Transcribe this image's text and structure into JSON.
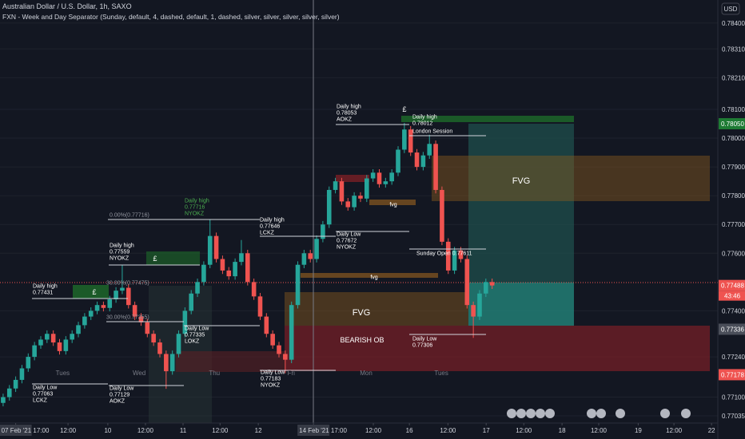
{
  "chart_data": {
    "type": "candlestick",
    "title": "Australian Dollar / U.S. Dollar, 1h, SAXO",
    "subtitle": "FXN - Week and Day Separator (Sunday, default, 4, dashed, default, 1, dashed, silver, silver, silver, silver, silver)",
    "currency": "USD",
    "up_color": "#26a69a",
    "down_color": "#ef5350",
    "xlim": [
      0,
      229
    ],
    "ylim": [
      0.7701,
      0.7848
    ],
    "xticks": [
      {
        "value": 5,
        "label": "07 Feb '21  17:00"
      },
      {
        "value": 21.7,
        "label": "12:00"
      },
      {
        "value": 34.4,
        "label": "10"
      },
      {
        "value": 46.4,
        "label": "12:00"
      },
      {
        "value": 58.4,
        "label": "11"
      },
      {
        "value": 70.2,
        "label": "12:00"
      },
      {
        "value": 82.4,
        "label": "12"
      },
      {
        "value": 100,
        "label": "14 Feb '21  17:00"
      },
      {
        "value": 119.1,
        "label": "12:00"
      },
      {
        "value": 130.6,
        "label": "16"
      },
      {
        "value": 142.9,
        "label": "12:00"
      },
      {
        "value": 155.1,
        "label": "17"
      },
      {
        "value": 167.1,
        "label": "12:00"
      },
      {
        "value": 179.3,
        "label": "18"
      },
      {
        "value": 191,
        "label": "12:00"
      },
      {
        "value": 203.6,
        "label": "19"
      },
      {
        "value": 215,
        "label": "12:00"
      },
      {
        "value": 227,
        "label": "22"
      }
    ],
    "yticks": [
      {
        "value": 0.784,
        "label": "0.78400"
      },
      {
        "value": 0.7831,
        "label": "0.78310"
      },
      {
        "value": 0.7821,
        "label": "0.78210"
      },
      {
        "value": 0.781,
        "label": "0.78100"
      },
      {
        "value": 0.78,
        "label": "0.78000"
      },
      {
        "value": 0.779,
        "label": "0.77900"
      },
      {
        "value": 0.778,
        "label": "0.77800"
      },
      {
        "value": 0.777,
        "label": "0.77700"
      },
      {
        "value": 0.776,
        "label": "0.77600"
      },
      {
        "value": 0.774,
        "label": "0.77400"
      },
      {
        "value": 0.7724,
        "label": "0.77240"
      },
      {
        "value": 0.771,
        "label": "0.77100"
      },
      {
        "value": 0.77035,
        "label": "0.77035"
      }
    ],
    "price_tags": [
      {
        "value": 0.7805,
        "label": "0.78050",
        "color": "#1e7b34"
      },
      {
        "value": 0.77488,
        "label": "0.77488",
        "color": "#ef5350"
      },
      {
        "value": 0.77336,
        "label": "0.77336",
        "color": "#4a4e59"
      },
      {
        "value": 0.77178,
        "label": "0.77178",
        "color": "#ef5350"
      }
    ],
    "countdown": "43:46",
    "day_labels": [
      {
        "value": 20,
        "label": "Tues"
      },
      {
        "value": 44.4,
        "label": "Wed"
      },
      {
        "value": 68.4,
        "label": "Thu"
      },
      {
        "value": 92.9,
        "label": "Fri"
      },
      {
        "value": 116.8,
        "label": "Mon"
      },
      {
        "value": 140.8,
        "label": "Tues"
      }
    ],
    "x": [
      1,
      3,
      5,
      7,
      9,
      11,
      13,
      15,
      17,
      19,
      21,
      23,
      25,
      27,
      29,
      31,
      33,
      35,
      37,
      39,
      41,
      43,
      45,
      47,
      49,
      51,
      53,
      55,
      57,
      59,
      61,
      63,
      65,
      67,
      69,
      71,
      73,
      75,
      77,
      79,
      81,
      83,
      85,
      87,
      89,
      91,
      93,
      95,
      97,
      99,
      101,
      103,
      105,
      107,
      109,
      111,
      113,
      115,
      117,
      119,
      121,
      123,
      125,
      127,
      129,
      131,
      133,
      135,
      137,
      139,
      141,
      143,
      145,
      147,
      149,
      151,
      153,
      155,
      157
    ],
    "candles": [
      [
        0.7708,
        0.77112,
        0.77068,
        0.771
      ],
      [
        0.771,
        0.77142,
        0.77088,
        0.7713
      ],
      [
        0.7713,
        0.77172,
        0.77118,
        0.7716
      ],
      [
        0.7716,
        0.77212,
        0.77148,
        0.772
      ],
      [
        0.772,
        0.77252,
        0.77188,
        0.7724
      ],
      [
        0.7724,
        0.77292,
        0.77228,
        0.7728
      ],
      [
        0.7728,
        0.77312,
        0.77268,
        0.773
      ],
      [
        0.773,
        0.77332,
        0.77288,
        0.7732
      ],
      [
        0.7732,
        0.77332,
        0.77278,
        0.7729
      ],
      [
        0.7729,
        0.77302,
        0.77248,
        0.7726
      ],
      [
        0.7726,
        0.77312,
        0.77248,
        0.773
      ],
      [
        0.773,
        0.77332,
        0.77288,
        0.7732
      ],
      [
        0.7732,
        0.77362,
        0.77308,
        0.7735
      ],
      [
        0.7735,
        0.77392,
        0.77338,
        0.7738
      ],
      [
        0.7738,
        0.77412,
        0.77368,
        0.774
      ],
      [
        0.774,
        0.77432,
        0.77388,
        0.7742
      ],
      [
        0.7742,
        0.77432,
        0.77398,
        0.7741
      ],
      [
        0.7741,
        0.77452,
        0.77398,
        0.7744
      ],
      [
        0.7744,
        0.77482,
        0.77428,
        0.7747
      ],
      [
        0.7747,
        0.77559,
        0.77458,
        0.7748
      ],
      [
        0.7748,
        0.77492,
        0.77408,
        0.7742
      ],
      [
        0.7742,
        0.77432,
        0.77368,
        0.7738
      ],
      [
        0.7738,
        0.77392,
        0.77348,
        0.7736
      ],
      [
        0.7736,
        0.77372,
        0.77308,
        0.7732
      ],
      [
        0.7732,
        0.77332,
        0.77278,
        0.7729
      ],
      [
        0.7729,
        0.77302,
        0.77238,
        0.7725
      ],
      [
        0.7725,
        0.77262,
        0.77129,
        0.7719
      ],
      [
        0.7719,
        0.77262,
        0.77178,
        0.7725
      ],
      [
        0.7725,
        0.77332,
        0.77238,
        0.7732
      ],
      [
        0.7732,
        0.77412,
        0.77308,
        0.774
      ],
      [
        0.774,
        0.77472,
        0.77388,
        0.7746
      ],
      [
        0.7746,
        0.77512,
        0.77448,
        0.775
      ],
      [
        0.775,
        0.77572,
        0.77488,
        0.7756
      ],
      [
        0.7756,
        0.77716,
        0.77548,
        0.7766
      ],
      [
        0.7766,
        0.77672,
        0.77568,
        0.7758
      ],
      [
        0.7758,
        0.77592,
        0.77528,
        0.7754
      ],
      [
        0.7754,
        0.77552,
        0.77508,
        0.7752
      ],
      [
        0.7752,
        0.77582,
        0.77508,
        0.7757
      ],
      [
        0.7757,
        0.77646,
        0.77558,
        0.776
      ],
      [
        0.776,
        0.77612,
        0.77488,
        0.775
      ],
      [
        0.775,
        0.77512,
        0.77438,
        0.7745
      ],
      [
        0.7745,
        0.77462,
        0.77368,
        0.7738
      ],
      [
        0.7738,
        0.77392,
        0.77308,
        0.7732
      ],
      [
        0.7732,
        0.77332,
        0.77268,
        0.7728
      ],
      [
        0.7728,
        0.77292,
        0.77238,
        0.7725
      ],
      [
        0.7725,
        0.77262,
        0.77183,
        0.7723
      ],
      [
        0.7723,
        0.77432,
        0.77218,
        0.7742
      ],
      [
        0.7742,
        0.77572,
        0.77408,
        0.7756
      ],
      [
        0.7756,
        0.77612,
        0.77548,
        0.776
      ],
      [
        0.776,
        0.77612,
        0.77568,
        0.7758
      ],
      [
        0.7758,
        0.77662,
        0.77568,
        0.7765
      ],
      [
        0.7765,
        0.77712,
        0.77638,
        0.777
      ],
      [
        0.777,
        0.77832,
        0.77688,
        0.7782
      ],
      [
        0.7782,
        0.77862,
        0.77808,
        0.7785
      ],
      [
        0.7785,
        0.77862,
        0.77768,
        0.7778
      ],
      [
        0.7778,
        0.77792,
        0.77748,
        0.7776
      ],
      [
        0.7776,
        0.77812,
        0.77748,
        0.778
      ],
      [
        0.778,
        0.77812,
        0.77778,
        0.7779
      ],
      [
        0.7779,
        0.77872,
        0.77778,
        0.7786
      ],
      [
        0.7786,
        0.77892,
        0.77848,
        0.7788
      ],
      [
        0.7788,
        0.77892,
        0.77828,
        0.7784
      ],
      [
        0.7784,
        0.77862,
        0.77828,
        0.7785
      ],
      [
        0.7785,
        0.77892,
        0.77838,
        0.7788
      ],
      [
        0.7788,
        0.77972,
        0.77868,
        0.7796
      ],
      [
        0.7796,
        0.78053,
        0.77948,
        0.7803
      ],
      [
        0.7803,
        0.78042,
        0.77938,
        0.7795
      ],
      [
        0.7795,
        0.77962,
        0.77888,
        0.779
      ],
      [
        0.779,
        0.77952,
        0.77888,
        0.7794
      ],
      [
        0.7794,
        0.78012,
        0.77928,
        0.7798
      ],
      [
        0.7798,
        0.77992,
        0.77808,
        0.7782
      ],
      [
        0.7782,
        0.77832,
        0.77628,
        0.7764
      ],
      [
        0.7764,
        0.77652,
        0.77528,
        0.7754
      ],
      [
        0.7754,
        0.77622,
        0.77528,
        0.7761
      ],
      [
        0.7761,
        0.77622,
        0.77568,
        0.7758
      ],
      [
        0.7758,
        0.77592,
        0.77408,
        0.7742
      ],
      [
        0.7742,
        0.77432,
        0.77306,
        0.7738
      ],
      [
        0.7738,
        0.77472,
        0.77368,
        0.7746
      ],
      [
        0.7746,
        0.77512,
        0.77448,
        0.775
      ],
      [
        0.775,
        0.77512,
        0.77476,
        0.77488
      ]
    ],
    "annotations": [
      {
        "lines": [
          "Daily high",
          "0.77431"
        ]
      },
      {
        "lines": [
          "£"
        ]
      },
      {
        "lines": [
          "Daily Low",
          "0.77063",
          "LCKZ"
        ]
      },
      {
        "lines": [
          "Daily high",
          "0.77559",
          "NYOKZ"
        ]
      },
      {
        "lines": [
          "£"
        ]
      },
      {
        "lines": [
          "0.00%(0.77716)"
        ]
      },
      {
        "lines": [
          "Daily high",
          "0.77716",
          "NYOKZ"
        ]
      },
      {
        "lines": [
          "30.00%(0.77475)"
        ]
      },
      {
        "lines": [
          "30.00%(0.77355)"
        ]
      },
      {
        "lines": [
          "Daily Low",
          "0.77129",
          "AOKZ"
        ]
      },
      {
        "lines": [
          "Daily Low",
          "0.77335",
          "LOKZ"
        ]
      },
      {
        "lines": [
          "Daily high",
          "0.77646",
          "LCKZ"
        ]
      },
      {
        "lines": [
          "Daily Low",
          "0.77183",
          "NYOKZ"
        ]
      },
      {
        "lines": [
          "Daily high",
          "0.78053",
          "AOKZ"
        ]
      },
      {
        "lines": [
          "£"
        ]
      },
      {
        "lines": [
          "Daily high",
          "0.78012"
        ]
      },
      {
        "lines": [
          "London Session"
        ]
      },
      {
        "lines": [
          "fvg"
        ]
      },
      {
        "lines": [
          "fvg"
        ]
      },
      {
        "lines": [
          "Daily Low",
          "0.77672",
          "NYOKZ"
        ]
      },
      {
        "lines": [
          "Sunday Open 0.77611"
        ]
      },
      {
        "lines": [
          "FVG"
        ]
      },
      {
        "lines": [
          "FVG"
        ]
      },
      {
        "lines": [
          "BEARISH OB"
        ]
      },
      {
        "lines": [
          "Daily Low",
          "0.77306"
        ]
      }
    ]
  }
}
